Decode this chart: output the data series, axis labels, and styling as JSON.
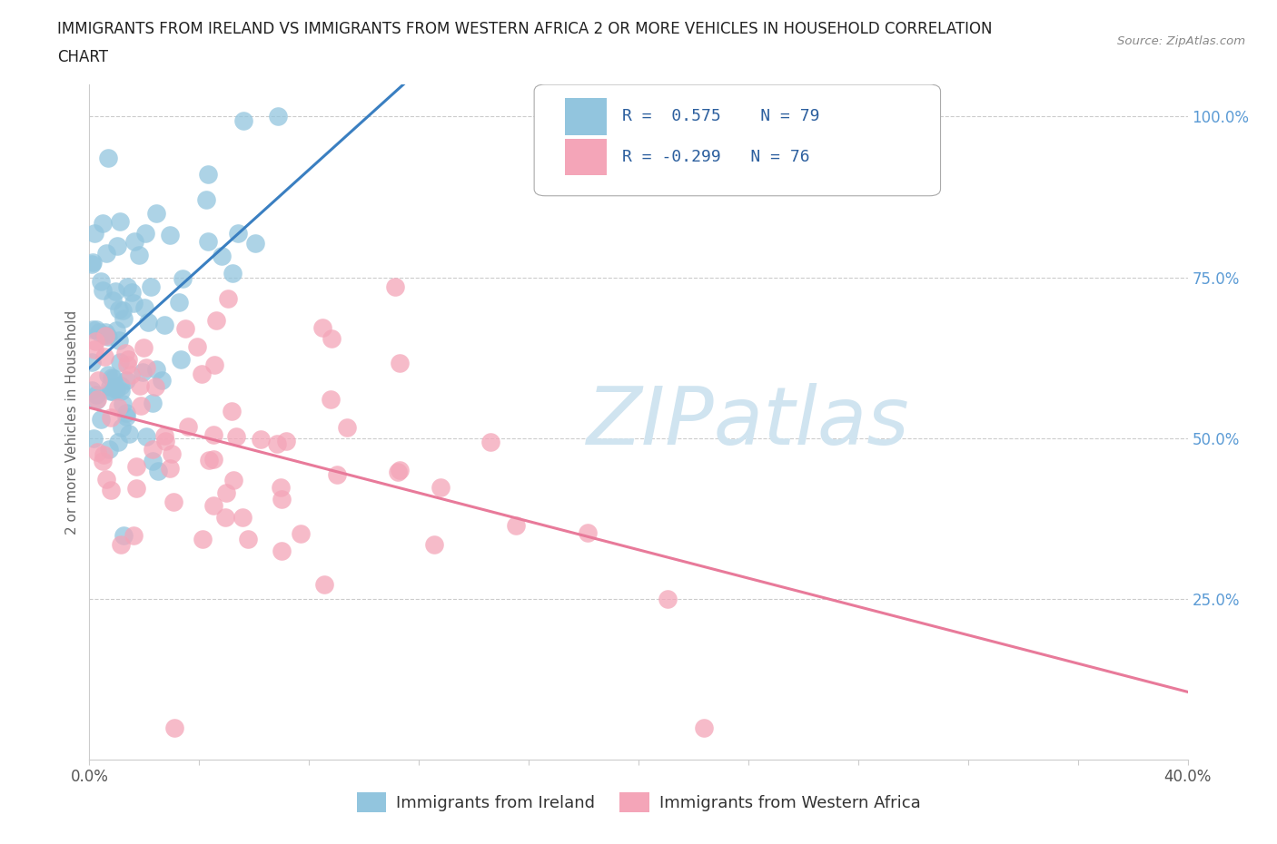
{
  "title_line1": "IMMIGRANTS FROM IRELAND VS IMMIGRANTS FROM WESTERN AFRICA 2 OR MORE VEHICLES IN HOUSEHOLD CORRELATION",
  "title_line2": "CHART",
  "source": "Source: ZipAtlas.com",
  "ylabel": "2 or more Vehicles in Household",
  "legend_label1": "Immigrants from Ireland",
  "legend_label2": "Immigrants from Western Africa",
  "R1": 0.575,
  "N1": 79,
  "R2": -0.299,
  "N2": 76,
  "color1": "#92c5de",
  "color2": "#f4a5b8",
  "line1_color": "#3a7fc1",
  "line2_color": "#e87a9a",
  "watermark_text": "ZIPatlas",
  "watermark_color": "#d0e4f0",
  "xlim": [
    0.0,
    0.4
  ],
  "ylim": [
    0.0,
    1.05
  ],
  "background_color": "#ffffff",
  "title_color": "#222222",
  "source_color": "#888888",
  "right_tick_color": "#5b9bd5",
  "bottom_tick_color": "#555555"
}
